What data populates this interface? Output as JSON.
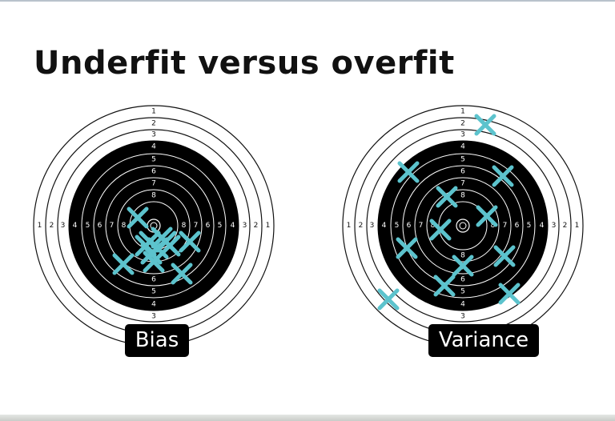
{
  "slide": {
    "title": "Underfit versus overfit"
  },
  "targets": [
    {
      "label": "Bias",
      "rings_top": [
        "1",
        "2",
        "3",
        "4",
        "5",
        "6",
        "7",
        "8"
      ],
      "rings_bottom": [
        "3",
        "4",
        "5",
        "6"
      ],
      "rings_left": [
        "1",
        "2",
        "3",
        "4",
        "5",
        "6",
        "7",
        "8"
      ],
      "rings_right": [
        "8",
        "7",
        "6",
        "5",
        "4",
        "3",
        "2",
        "1"
      ],
      "mark_color": "#5cc3cd",
      "mark_count": 12
    },
    {
      "label": "Variance",
      "rings_top": [
        "1",
        "2",
        "3",
        "4",
        "5",
        "6",
        "7",
        "8"
      ],
      "rings_bottom": [
        "3",
        "4",
        "5",
        "6",
        "7",
        "8"
      ],
      "rings_left": [
        "1",
        "2",
        "3",
        "4",
        "5",
        "6",
        "7",
        "8"
      ],
      "rings_right": [
        "8",
        "7",
        "6",
        "5",
        "4",
        "3",
        "2",
        "1"
      ],
      "mark_color": "#5cc3cd",
      "mark_count": 12
    }
  ]
}
